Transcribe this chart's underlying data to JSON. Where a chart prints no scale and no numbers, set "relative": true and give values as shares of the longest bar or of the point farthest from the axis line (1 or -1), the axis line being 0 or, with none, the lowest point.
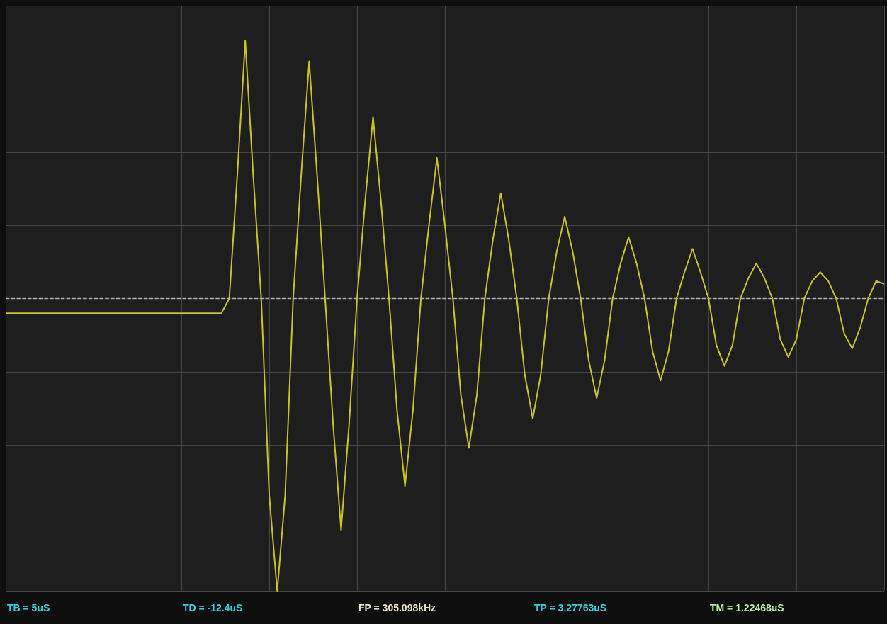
{
  "chart_data": {
    "type": "line",
    "relative": true,
    "categories": [
      null,
      null,
      null,
      null,
      null,
      null,
      null,
      null,
      null,
      null,
      null,
      null,
      null,
      null,
      null,
      null,
      null,
      null,
      null,
      null,
      null,
      null,
      null,
      null,
      null,
      null,
      null,
      null,
      null,
      null,
      null,
      null,
      null,
      null,
      null,
      null,
      null,
      null,
      null,
      null,
      null,
      null,
      null,
      null,
      null,
      null,
      null,
      null,
      null,
      null,
      null,
      null,
      null,
      null,
      null,
      null,
      null,
      null,
      null,
      null,
      null,
      null,
      null,
      null,
      null,
      null,
      null,
      null,
      null,
      null,
      null,
      null,
      null,
      null,
      null,
      null,
      null,
      null,
      null,
      null,
      null,
      null,
      null,
      null,
      null,
      null,
      null,
      null,
      null,
      null,
      null,
      null,
      null,
      null,
      null,
      null,
      null,
      null,
      null,
      null,
      null,
      null,
      null,
      null,
      null,
      null,
      null,
      null,
      null,
      null,
      null
    ],
    "series": [
      {
        "color": "#c9c423",
        "values": [
          -0.05,
          -0.05,
          -0.05,
          -0.05,
          -0.05,
          -0.05,
          -0.05,
          -0.05,
          -0.05,
          -0.05,
          -0.05,
          -0.05,
          -0.05,
          -0.05,
          -0.05,
          -0.05,
          -0.05,
          -0.05,
          -0.05,
          -0.05,
          -0.05,
          -0.05,
          -0.05,
          -0.05,
          -0.05,
          -0.05,
          -0.05,
          -0.05,
          0,
          0.42,
          0.88,
          0.42,
          0,
          -0.67,
          -1,
          -0.67,
          0,
          0.42,
          0.81,
          0.42,
          0,
          -0.43,
          -0.79,
          -0.43,
          0,
          0.33,
          0.62,
          0.33,
          0,
          -0.38,
          -0.64,
          -0.38,
          0,
          0.25,
          0.48,
          0.25,
          0,
          -0.33,
          -0.51,
          -0.33,
          0,
          0.2,
          0.36,
          0.2,
          0,
          -0.26,
          -0.41,
          -0.26,
          0,
          0.16,
          0.28,
          0.16,
          0,
          -0.21,
          -0.34,
          -0.21,
          0,
          0.12,
          0.21,
          0.12,
          0,
          -0.18,
          -0.28,
          -0.18,
          0,
          0.09,
          0.17,
          0.09,
          0,
          -0.16,
          -0.23,
          -0.16,
          0,
          0.07,
          0.12,
          0.07,
          0,
          -0.14,
          -0.2,
          -0.14,
          0,
          0.06,
          0.09,
          0.06,
          0,
          -0.12,
          -0.17,
          -0.1,
          0,
          0.06,
          0.05
        ]
      }
    ],
    "grid": true,
    "ref_lines": [
      {
        "axis": "y",
        "value": 0,
        "color": "#b0b0b0",
        "line_style": "dashed"
      }
    ],
    "annotations": [
      "TB = 5uS",
      "TD = -12.4uS",
      "FP = 305.098kHz",
      "TP = 3.27763uS",
      "TM = 1.22468uS"
    ]
  }
}
